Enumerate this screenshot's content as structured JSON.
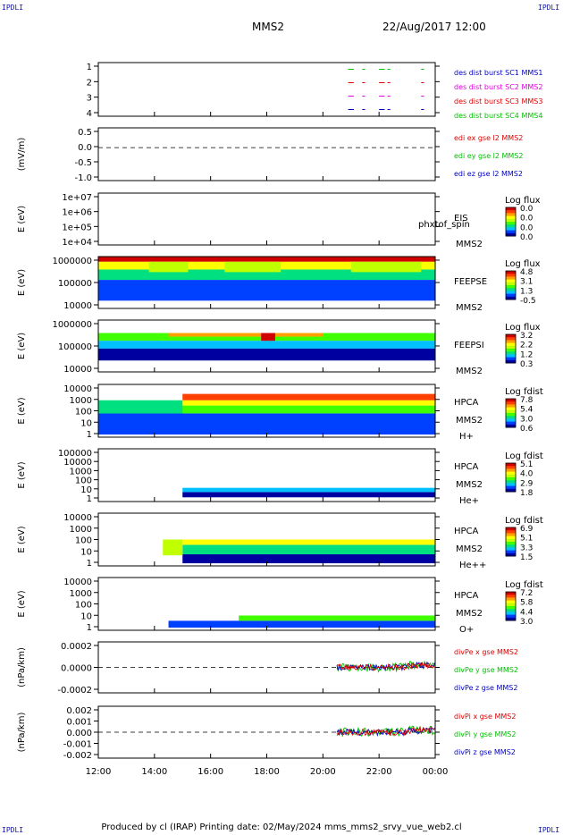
{
  "corner_label": "IPDLI",
  "header": {
    "spacecraft": "MMS2",
    "datetime": "22/Aug/2017 12:00"
  },
  "footer": "Produced by cl (IRAP)   Printing date: 02/May/2024   mms_mms2_srvy_vue_web2.cl",
  "colors": {
    "red": "#e00000",
    "green": "#00c000",
    "blue": "#0000c0",
    "magenta": "#e000e0",
    "colormap": [
      "#0000a0",
      "#0040ff",
      "#00c0ff",
      "#00e080",
      "#40ff00",
      "#c0ff00",
      "#ffff00",
      "#ffa000",
      "#ff4000",
      "#d00000"
    ]
  },
  "chart_data": {
    "type": "multi-panel time series",
    "x_ticks": [
      "12:00",
      "14:00",
      "16:00",
      "18:00",
      "20:00",
      "22:00",
      "00:00"
    ],
    "panels": [
      {
        "id": "burst",
        "type": "line",
        "ylim": [
          0.5,
          4.5
        ],
        "y_ticks": [
          "1",
          "2",
          "3",
          "4"
        ],
        "ylabel": "",
        "legend": [
          {
            "text": "des dist burst SC1 MMS1",
            "color": "#0000c0"
          },
          {
            "text": "des dist burst SC2 MMS2",
            "color": "#e000e0"
          },
          {
            "text": "des dist burst SC3 MMS3",
            "color": "#e00000"
          },
          {
            "text": "des dist burst SC4 MMS4",
            "color": "#00c000"
          }
        ],
        "series": [
          {
            "level": 4,
            "color": "#00c000",
            "intervals": [
              [
                20.9,
                21.1
              ],
              [
                21.4,
                21.5
              ],
              [
                22.0,
                22.2
              ],
              [
                22.3,
                22.4
              ],
              [
                23.5,
                23.6
              ]
            ]
          },
          {
            "level": 3,
            "color": "#e00000",
            "intervals": [
              [
                20.9,
                21.1
              ],
              [
                21.4,
                21.5
              ],
              [
                22.0,
                22.2
              ],
              [
                22.3,
                22.4
              ],
              [
                23.5,
                23.6
              ]
            ]
          },
          {
            "level": 2,
            "color": "#e000e0",
            "intervals": [
              [
                20.9,
                21.1
              ],
              [
                21.4,
                21.5
              ],
              [
                22.0,
                22.2
              ],
              [
                22.3,
                22.4
              ],
              [
                23.5,
                23.6
              ]
            ]
          },
          {
            "level": 1,
            "color": "#0000c0",
            "intervals": [
              [
                20.9,
                21.1
              ],
              [
                21.4,
                21.5
              ],
              [
                22.0,
                22.2
              ],
              [
                22.3,
                22.4
              ],
              [
                23.5,
                23.6
              ]
            ]
          }
        ]
      },
      {
        "id": "edi",
        "type": "line",
        "ylim": [
          -1.25,
          0.75
        ],
        "y_ticks": [
          "0.5",
          "0.0",
          "-0.5",
          "-1.0"
        ],
        "ylabel": "(mV/m)",
        "zero_line": true,
        "legend": [
          {
            "text": "edi ex gse l2 MMS2",
            "color": "#e00000"
          },
          {
            "text": "edi ey gse l2 MMS2",
            "color": "#00c000"
          },
          {
            "text": "edi ez gse l2 MMS2",
            "color": "#0000c0"
          }
        ]
      },
      {
        "id": "eis",
        "type": "heatmap",
        "ylabel": "E (eV)",
        "y_ticks": [
          "1e+07",
          "1e+06",
          "1e+05",
          "1e+04"
        ],
        "instrument": [
          "EIS",
          "MMS2"
        ],
        "overlay_label": "phxtof_spin",
        "colorbar": {
          "title": "Log flux",
          "ticks": [
            "0.0",
            "0.0",
            "0.0",
            "0.0"
          ]
        },
        "regions": []
      },
      {
        "id": "feepse",
        "type": "heatmap",
        "ylabel": "E (eV)",
        "y_ticks": [
          "1000000",
          "100000",
          "10000"
        ],
        "instrument": [
          "FEEPSE",
          "MMS2"
        ],
        "colorbar": {
          "title": "Log flux",
          "ticks": [
            "4.8",
            "3.1",
            "1.3",
            "-0.5"
          ]
        },
        "regions": [
          {
            "t0": 12.0,
            "t1": 24.0,
            "e0": 0.0,
            "e1": 0.1,
            "level": 9
          },
          {
            "t0": 12.0,
            "t1": 24.0,
            "e0": 0.1,
            "e1": 0.25,
            "level": 6
          },
          {
            "t0": 12.0,
            "t1": 24.0,
            "e0": 0.25,
            "e1": 0.45,
            "level": 3
          },
          {
            "t0": 12.0,
            "t1": 24.0,
            "e0": 0.45,
            "e1": 0.85,
            "level": 1
          },
          {
            "t0": 13.8,
            "t1": 15.2,
            "e0": 0.1,
            "e1": 0.3,
            "level": 5
          },
          {
            "t0": 16.5,
            "t1": 18.5,
            "e0": 0.1,
            "e1": 0.3,
            "level": 5
          },
          {
            "t0": 21.0,
            "t1": 23.5,
            "e0": 0.1,
            "e1": 0.3,
            "level": 5
          }
        ]
      },
      {
        "id": "feepsi",
        "type": "heatmap",
        "ylabel": "E (eV)",
        "y_ticks": [
          "1000000",
          "100000",
          "10000"
        ],
        "instrument": [
          "FEEPSI",
          "MMS2"
        ],
        "colorbar": {
          "title": "Log flux",
          "ticks": [
            "3.2",
            "2.2",
            "1.2",
            "0.3"
          ]
        },
        "regions": [
          {
            "t0": 12.0,
            "t1": 24.0,
            "e0": 0.25,
            "e1": 0.4,
            "level": 4
          },
          {
            "t0": 12.0,
            "t1": 24.0,
            "e0": 0.4,
            "e1": 0.55,
            "level": 2
          },
          {
            "t0": 12.0,
            "t1": 24.0,
            "e0": 0.55,
            "e1": 0.78,
            "level": 0
          },
          {
            "t0": 14.5,
            "t1": 20.0,
            "e0": 0.25,
            "e1": 0.32,
            "level": 7
          },
          {
            "t0": 17.8,
            "t1": 18.3,
            "e0": 0.25,
            "e1": 0.4,
            "level": 9
          }
        ]
      },
      {
        "id": "hpca_h",
        "type": "heatmap",
        "ylabel": "E (eV)",
        "y_ticks": [
          "10000",
          "1000",
          "100",
          "10",
          "1"
        ],
        "instrument": [
          "HPCA",
          "MMS2",
          "H+"
        ],
        "colorbar": {
          "title": "Log fdist",
          "ticks": [
            "7.8",
            "5.4",
            "3.0",
            "0.6"
          ]
        },
        "regions": [
          {
            "t0": 12.0,
            "t1": 24.0,
            "e0": 0.55,
            "e1": 0.95,
            "level": 1
          },
          {
            "t0": 12.0,
            "t1": 24.0,
            "e0": 0.4,
            "e1": 0.55,
            "level": 4
          },
          {
            "t0": 15.0,
            "t1": 24.0,
            "e0": 0.3,
            "e1": 0.4,
            "level": 6
          },
          {
            "t0": 15.0,
            "t1": 24.0,
            "e0": 0.18,
            "e1": 0.3,
            "level": 8
          },
          {
            "t0": 12.0,
            "t1": 15.0,
            "e0": 0.3,
            "e1": 0.55,
            "level": 3
          }
        ]
      },
      {
        "id": "hpca_he",
        "type": "heatmap",
        "ylabel": "E (eV)",
        "y_ticks": [
          "100000",
          "10000",
          "1000",
          "100",
          "10",
          "1"
        ],
        "instrument": [
          "HPCA",
          "MMS2",
          "He+"
        ],
        "colorbar": {
          "title": "Log fdist",
          "ticks": [
            "5.1",
            "4.0",
            "2.9",
            "1.8"
          ]
        },
        "regions": [
          {
            "t0": 15.0,
            "t1": 24.0,
            "e0": 0.82,
            "e1": 0.92,
            "level": 0
          },
          {
            "t0": 15.0,
            "t1": 24.0,
            "e0": 0.74,
            "e1": 0.82,
            "level": 2
          }
        ]
      },
      {
        "id": "hpca_he2",
        "type": "heatmap",
        "ylabel": "E (eV)",
        "y_ticks": [
          "10000",
          "1000",
          "100",
          "10",
          "1"
        ],
        "instrument": [
          "HPCA",
          "MMS2",
          "He++"
        ],
        "colorbar": {
          "title": "Log fdist",
          "ticks": [
            "6.9",
            "5.1",
            "3.3",
            "1.5"
          ]
        },
        "regions": [
          {
            "t0": 15.0,
            "t1": 24.0,
            "e0": 0.78,
            "e1": 0.95,
            "level": 0
          },
          {
            "t0": 15.0,
            "t1": 24.0,
            "e0": 0.6,
            "e1": 0.78,
            "level": 3
          },
          {
            "t0": 15.0,
            "t1": 24.0,
            "e0": 0.5,
            "e1": 0.6,
            "level": 6
          },
          {
            "t0": 14.3,
            "t1": 15.0,
            "e0": 0.5,
            "e1": 0.8,
            "level": 5
          }
        ]
      },
      {
        "id": "hpca_o",
        "type": "heatmap",
        "ylabel": "E (eV)",
        "y_ticks": [
          "10000",
          "1000",
          "100",
          "10",
          "1"
        ],
        "instrument": [
          "HPCA",
          "MMS2",
          "O+"
        ],
        "colorbar": {
          "title": "Log fdist",
          "ticks": [
            "7.2",
            "5.8",
            "4.4",
            "3.0"
          ]
        },
        "regions": [
          {
            "t0": 14.5,
            "t1": 24.0,
            "e0": 0.82,
            "e1": 0.95,
            "level": 1
          },
          {
            "t0": 17.0,
            "t1": 24.0,
            "e0": 0.72,
            "e1": 0.82,
            "level": 4
          }
        ]
      },
      {
        "id": "divpe",
        "type": "line",
        "ylim": [
          -0.00032,
          0.00032
        ],
        "y_ticks": [
          "0.0002",
          "0.0000",
          "-0.0002"
        ],
        "ylabel": "(nPa/km)",
        "zero_line": true,
        "data_start": 20.5,
        "legend": [
          {
            "text": "divPe x gse MMS2",
            "color": "#e00000"
          },
          {
            "text": "divPe y gse MMS2",
            "color": "#00c000"
          },
          {
            "text": "divPe z gse MMS2",
            "color": "#0000c0"
          }
        ]
      },
      {
        "id": "divpi",
        "type": "line",
        "ylim": [
          -0.0028,
          0.0028
        ],
        "y_ticks": [
          "0.002",
          "0.001",
          "0.000",
          "-0.001",
          "-0.002"
        ],
        "ylabel": "(nPa/km)",
        "zero_line": true,
        "data_start": 20.5,
        "legend": [
          {
            "text": "divPi x gse MMS2",
            "color": "#e00000"
          },
          {
            "text": "divPi y gse MMS2",
            "color": "#00c000"
          },
          {
            "text": "divPi z gse MMS2",
            "color": "#0000c0"
          }
        ]
      }
    ]
  }
}
